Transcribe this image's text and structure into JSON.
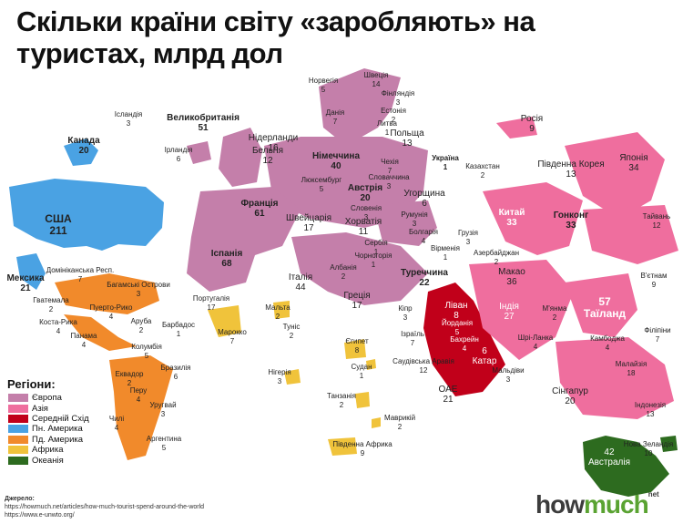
{
  "title": "Скільки країни світу «заробляють» на туристах, млрд дол",
  "legend": {
    "title": "Регіони:",
    "items": [
      {
        "label": "Європа",
        "color": "#c47faa"
      },
      {
        "label": "Азія",
        "color": "#ef6e9e"
      },
      {
        "label": "Середній Схід",
        "color": "#c1001a"
      },
      {
        "label": "Пн. Америка",
        "color": "#4aa2e3"
      },
      {
        "label": "Пд. Америка",
        "color": "#f18a2b"
      },
      {
        "label": "Африка",
        "color": "#f0c33b"
      },
      {
        "label": "Океанія",
        "color": "#2d6b1f"
      }
    ]
  },
  "countries": [
    {
      "name": "Ісландія",
      "value": "3"
    },
    {
      "name": "Канада",
      "value": "20"
    },
    {
      "name": "США",
      "value": "211"
    },
    {
      "name": "Мексика",
      "value": "21"
    },
    {
      "name": "Великобританія",
      "value": "51"
    },
    {
      "name": "Ірландія",
      "value": "6"
    },
    {
      "name": "Норвегія",
      "value": "5"
    },
    {
      "name": "Швеція",
      "value": "14"
    },
    {
      "name": "Фінляндія",
      "value": "3"
    },
    {
      "name": "Данія",
      "value": "7"
    },
    {
      "name": "Естонія",
      "value": "2"
    },
    {
      "name": "Литва",
      "value": "1"
    },
    {
      "name": "Нідерланди",
      "value": "16"
    },
    {
      "name": "Польща",
      "value": "13"
    },
    {
      "name": "Бельгія",
      "value": "12"
    },
    {
      "name": "Німеччина",
      "value": "40"
    },
    {
      "name": "Україна",
      "value": "1"
    },
    {
      "name": "Росія",
      "value": "9"
    },
    {
      "name": "Казахстан",
      "value": "2"
    },
    {
      "name": "Чехія",
      "value": "7"
    },
    {
      "name": "Словаччина",
      "value": "3"
    },
    {
      "name": "Люксембург",
      "value": "5"
    },
    {
      "name": "Австрія",
      "value": "20"
    },
    {
      "name": "Угорщина",
      "value": "6"
    },
    {
      "name": "Франція",
      "value": "61"
    },
    {
      "name": "Словенія",
      "value": "3"
    },
    {
      "name": "Хорватія",
      "value": "11"
    },
    {
      "name": "Румунія",
      "value": "3"
    },
    {
      "name": "Швейцарія",
      "value": "17"
    },
    {
      "name": "Сербія",
      "value": "1"
    },
    {
      "name": "Болгарія",
      "value": "4"
    },
    {
      "name": "Чорногорія",
      "value": "1"
    },
    {
      "name": "Грузія",
      "value": "3"
    },
    {
      "name": "Вірменія",
      "value": "1"
    },
    {
      "name": "Азербайджан",
      "value": "2"
    },
    {
      "name": "Албанія",
      "value": "2"
    },
    {
      "name": "Іспанія",
      "value": "68"
    },
    {
      "name": "Італія",
      "value": "44"
    },
    {
      "name": "Туреччина",
      "value": "22"
    },
    {
      "name": "Португалія",
      "value": "17"
    },
    {
      "name": "Греція",
      "value": "17"
    },
    {
      "name": "Мальта",
      "value": "2"
    },
    {
      "name": "Кіпр",
      "value": "3"
    },
    {
      "name": "Марокко",
      "value": "7"
    },
    {
      "name": "Туніс",
      "value": "2"
    },
    {
      "name": "Єгипет",
      "value": "8"
    },
    {
      "name": "Нігерія",
      "value": "3"
    },
    {
      "name": "Ізраїль",
      "value": "7"
    },
    {
      "name": "Ліван",
      "value": "8"
    },
    {
      "name": "Йорданія",
      "value": "5"
    },
    {
      "name": "Бахрейн",
      "value": "4"
    },
    {
      "name": "Катар",
      "value": "6"
    },
    {
      "name": "Саудівська Аравія",
      "value": "12"
    },
    {
      "name": "ОАЕ",
      "value": "21"
    },
    {
      "name": "Судан",
      "value": "1"
    },
    {
      "name": "Мальдіви",
      "value": "3"
    },
    {
      "name": "Танзанія",
      "value": "2"
    },
    {
      "name": "Маврикій",
      "value": "2"
    },
    {
      "name": "Південна Африка",
      "value": "9"
    },
    {
      "name": "Китай",
      "value": "33"
    },
    {
      "name": "Гонконг",
      "value": "33"
    },
    {
      "name": "Південна Корея",
      "value": "13"
    },
    {
      "name": "Японія",
      "value": "34"
    },
    {
      "name": "Тайвань",
      "value": "12"
    },
    {
      "name": "Макао",
      "value": "36"
    },
    {
      "name": "Індія",
      "value": "27"
    },
    {
      "name": "М'янма",
      "value": "2"
    },
    {
      "name": "Таїланд",
      "value": "57"
    },
    {
      "name": "В'єтнам",
      "value": "9"
    },
    {
      "name": "Філіпіни",
      "value": "7"
    },
    {
      "name": "Шрі-Ланка",
      "value": "4"
    },
    {
      "name": "Камбоджа",
      "value": "4"
    },
    {
      "name": "Малайзія",
      "value": "18"
    },
    {
      "name": "Сінгапур",
      "value": "20"
    },
    {
      "name": "Індонезія",
      "value": "13"
    },
    {
      "name": "Нова Зеландія",
      "value": "10"
    },
    {
      "name": "Австралія",
      "value": "42"
    },
    {
      "name": "Домініканська Респ.",
      "value": "7"
    },
    {
      "name": "Багамські Острови",
      "value": "3"
    },
    {
      "name": "Гватемала",
      "value": "2"
    },
    {
      "name": "Пуерто-Рико",
      "value": "4"
    },
    {
      "name": "Аруба",
      "value": "2"
    },
    {
      "name": "Барбадос",
      "value": "1"
    },
    {
      "name": "Коста-Рика",
      "value": "4"
    },
    {
      "name": "Панама",
      "value": "4"
    },
    {
      "name": "Колумбія",
      "value": "5"
    },
    {
      "name": "Еквадор",
      "value": "2"
    },
    {
      "name": "Бразилія",
      "value": "6"
    },
    {
      "name": "Перу",
      "value": "4"
    },
    {
      "name": "Уругвай",
      "value": "3"
    },
    {
      "name": "Чилі",
      "value": "4"
    },
    {
      "name": "Аргентина",
      "value": "5"
    }
  ],
  "source": {
    "heading": "Джерело:",
    "lines": [
      "https://howmuch.net/articles/how-much-tourist-spend-around-the-world",
      "https://www.e-unwto.org/"
    ]
  },
  "logo": {
    "part1": "how",
    "part2": "much",
    "suffix": "net"
  }
}
